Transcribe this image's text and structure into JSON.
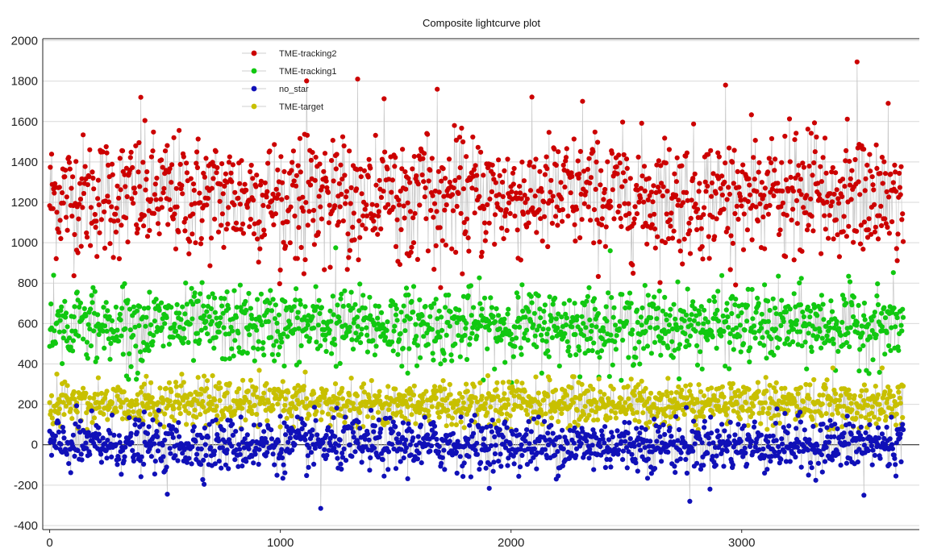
{
  "chart_data": {
    "type": "scatter",
    "title": "Composite lightcurve plot",
    "xlabel": "",
    "ylabel": "",
    "xlim": [
      -30,
      3770
    ],
    "ylim": [
      -420,
      2010
    ],
    "x_ticks": [
      0,
      1000,
      2000,
      3000
    ],
    "x_tick_labels": [
      "0",
      "1000",
      "2000",
      "3000"
    ],
    "y_ticks": [
      -400,
      -200,
      0,
      200,
      400,
      600,
      800,
      1000,
      1200,
      1400,
      1600,
      1800,
      2000
    ],
    "y_tick_labels": [
      "-400",
      "-200",
      "0",
      "200",
      "400",
      "600",
      "800",
      "1000",
      "1200",
      "1400",
      "1600",
      "1800",
      "2000"
    ],
    "grid": "horizontal",
    "zero_line": true,
    "legend": "top-left",
    "connect_points": true,
    "connector_color": "#c8c8c8",
    "series": [
      {
        "name": "TME-tracking2",
        "color": "#cc0000",
        "x_range": [
          0,
          3700
        ],
        "n_points": 1300,
        "center": 1230,
        "spread": 150,
        "outliers": [
          [
            1335,
            1810
          ],
          [
            3500,
            1895
          ],
          [
            2930,
            1780
          ],
          [
            1680,
            1760
          ],
          [
            395,
            1720
          ],
          [
            2310,
            1700
          ],
          [
            3635,
            1690
          ]
        ],
        "min": 760,
        "max": 1900
      },
      {
        "name": "TME-tracking1",
        "color": "#11c811",
        "x_range": [
          0,
          3700
        ],
        "n_points": 1300,
        "center": 590,
        "spread": 90,
        "outliers": [
          [
            1240,
            975
          ],
          [
            2430,
            960
          ]
        ],
        "min": 300,
        "max": 980
      },
      {
        "name": "no_star",
        "color": "#1010b8",
        "x_range": [
          0,
          3700
        ],
        "n_points": 1300,
        "center": 0,
        "spread": 65,
        "outliers": [
          [
            1175,
            -315
          ],
          [
            2775,
            -305
          ],
          [
            2775,
            -280
          ],
          [
            510,
            -245
          ],
          [
            3530,
            -250
          ]
        ],
        "min": -320,
        "max": 300
      },
      {
        "name": "TME-target",
        "color": "#c8c000",
        "x_range": [
          0,
          3700
        ],
        "n_points": 1300,
        "center": 205,
        "spread": 55,
        "outliers": [],
        "min": 70,
        "max": 380
      }
    ]
  }
}
